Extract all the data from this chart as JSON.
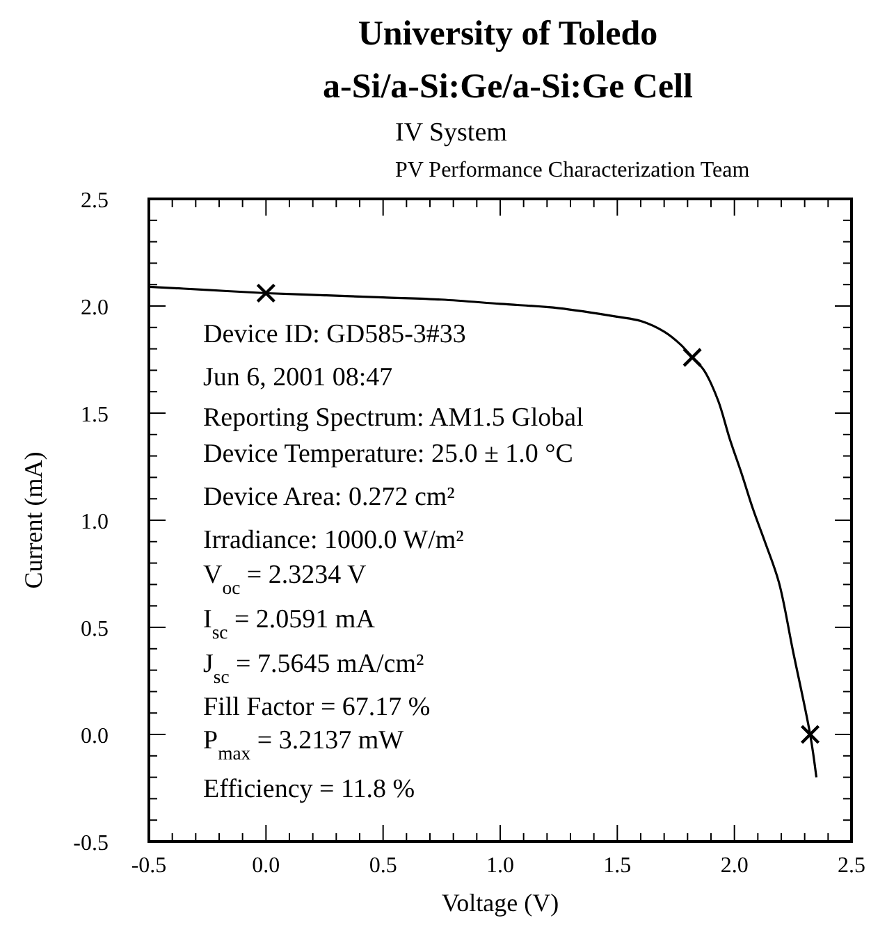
{
  "chart_data": {
    "type": "line",
    "title": "University of Toledo\na-Si/a-Si:Ge/a-Si:Ge  Cell",
    "subtitle": "IV System\nPV Performance Characterization Team",
    "xlabel": "Voltage (V)",
    "ylabel": "Current (mA)",
    "series": [
      {
        "color": "#000000",
        "marker": "none",
        "x": [
          -0.5,
          -0.25,
          0,
          0.25,
          0.5,
          0.75,
          1.0,
          1.25,
          1.5,
          1.6,
          1.7,
          1.77,
          1.82,
          1.87,
          1.93,
          1.98,
          2.03,
          2.08,
          2.13,
          2.19,
          2.25,
          2.3234,
          2.35
        ],
        "values": [
          2.09,
          2.075,
          2.06,
          2.05,
          2.04,
          2.03,
          2.01,
          1.99,
          1.95,
          1.93,
          1.88,
          1.82,
          1.76,
          1.7,
          1.56,
          1.38,
          1.22,
          1.05,
          0.9,
          0.71,
          0.39,
          0,
          -0.2
        ]
      },
      {
        "type": "scatter",
        "color": "#000000",
        "marker": "cross",
        "x": [
          0,
          1.82,
          2.3234
        ],
        "values": [
          2.06,
          1.76,
          0
        ]
      }
    ],
    "xlim": [
      -0.5,
      2.5
    ],
    "ylim": [
      -0.5,
      2.5
    ],
    "xticks": [
      "-0.5",
      {
        "value": -0.4,
        "label": null
      },
      {
        "value": -0.3,
        "label": null
      },
      {
        "value": -0.2,
        "label": null
      },
      {
        "value": -0.1,
        "label": null
      },
      {
        "value": 0,
        "label": "0.0"
      },
      {
        "value": 0.1,
        "label": null
      },
      {
        "value": 0.2,
        "label": null
      },
      {
        "value": 0.3,
        "label": null
      },
      {
        "value": 0.4,
        "label": null
      },
      0.5,
      {
        "value": 0.6,
        "label": null
      },
      {
        "value": 0.7,
        "label": null
      },
      {
        "value": 0.8,
        "label": null
      },
      {
        "value": 0.9,
        "label": null
      },
      {
        "value": 1,
        "label": "1.0"
      },
      {
        "value": 1.1,
        "label": null
      },
      {
        "value": 1.2,
        "label": null
      },
      {
        "value": 1.3,
        "label": null
      },
      {
        "value": 1.4,
        "label": null
      },
      1.5,
      {
        "value": 1.6,
        "label": null
      },
      {
        "value": 1.7,
        "label": null
      },
      {
        "value": 1.8,
        "label": null
      },
      {
        "value": 1.9,
        "label": null
      },
      {
        "value": 2,
        "label": "2.0"
      },
      {
        "value": 2.1,
        "label": null
      },
      {
        "value": 2.2,
        "label": null
      },
      {
        "value": 2.3,
        "label": null
      },
      {
        "value": 2.4,
        "label": null
      },
      2.5
    ],
    "yticks": [
      -0.5,
      {
        "value": -0.4,
        "label": null
      },
      {
        "value": -0.3,
        "label": null
      },
      {
        "value": -0.2,
        "label": null
      },
      {
        "value": -0.1,
        "label": null
      },
      {
        "value": 0,
        "label": "0.0"
      },
      {
        "value": 0.1,
        "label": null
      },
      {
        "value": 0.2,
        "label": null
      },
      {
        "value": 0.3,
        "label": null
      },
      {
        "value": 0.4,
        "label": null
      },
      0.5,
      {
        "value": 0.6,
        "label": null
      },
      {
        "value": 0.7,
        "label": null
      },
      {
        "value": 0.8,
        "label": null
      },
      {
        "value": 0.9,
        "label": null
      },
      {
        "value": 1,
        "label": "1.0"
      },
      {
        "value": 1.1,
        "label": null
      },
      {
        "value": 1.2,
        "label": null
      },
      {
        "value": 1.3,
        "label": null
      },
      {
        "value": 1.4,
        "label": null
      },
      1.5,
      {
        "value": 1.6,
        "label": null
      },
      {
        "value": 1.7,
        "label": null
      },
      {
        "value": 1.8,
        "label": null
      },
      {
        "value": 1.9,
        "label": null
      },
      {
        "value": 2,
        "label": "2.0"
      },
      {
        "value": 2.1,
        "label": null
      },
      {
        "value": 2.2,
        "label": null
      },
      {
        "value": 2.3,
        "label": null
      },
      {
        "value": 2.4,
        "label": null
      },
      2.5
    ],
    "grid": false,
    "annotations": [
      "Device ID: GD585-3#33",
      "Jun 6, 2001 08:47",
      "Reporting Spectrum: AM1.5 Global",
      "Device Temperature: 25.0 ± 1.0 °C",
      "Device Area: 0.272 cm²",
      "Irradiance: 1000.0 W/m²",
      "V$_{oc}$ = 2.3234 V",
      "I$_{sc}$ = 2.0591 mA",
      "J$_{sc}$ = 7.5645 mA/cm²",
      "Fill Factor = 67.17 %",
      "P$_{max}$ = 3.2137 mW",
      "Efficiency = 11.8 %"
    ]
  }
}
